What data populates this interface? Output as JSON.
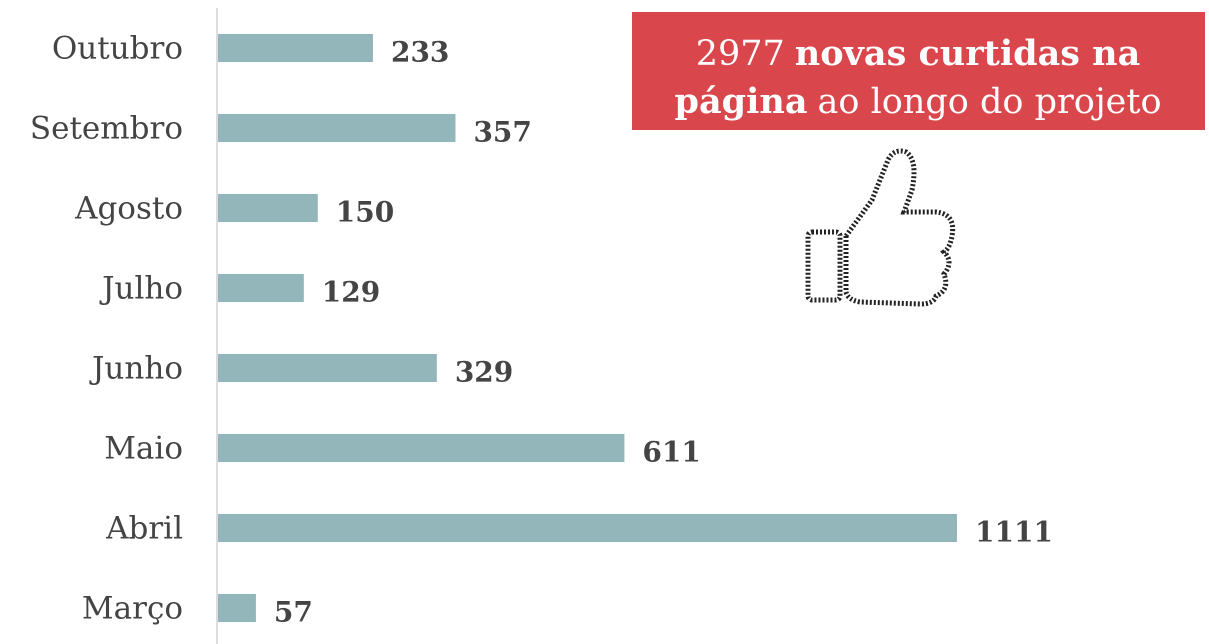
{
  "chart_data": {
    "type": "hbar",
    "categories": [
      "Outubro",
      "Setembro",
      "Agosto",
      "Julho",
      "Junho",
      "Maio",
      "Abril",
      "Março"
    ],
    "values": [
      233,
      357,
      150,
      129,
      329,
      611,
      1111,
      57
    ],
    "color": "#93b6ba",
    "annotation": [
      [
        {
          "text": "2977",
          "bold": false
        },
        {
          "text": "novas curtidas na",
          "bold": true
        }
      ],
      [
        {
          "text": "página",
          "bold": true
        },
        {
          "text": "ao longo do projeto",
          "bold": false
        }
      ]
    ],
    "annotation_color": "#d9474c"
  }
}
